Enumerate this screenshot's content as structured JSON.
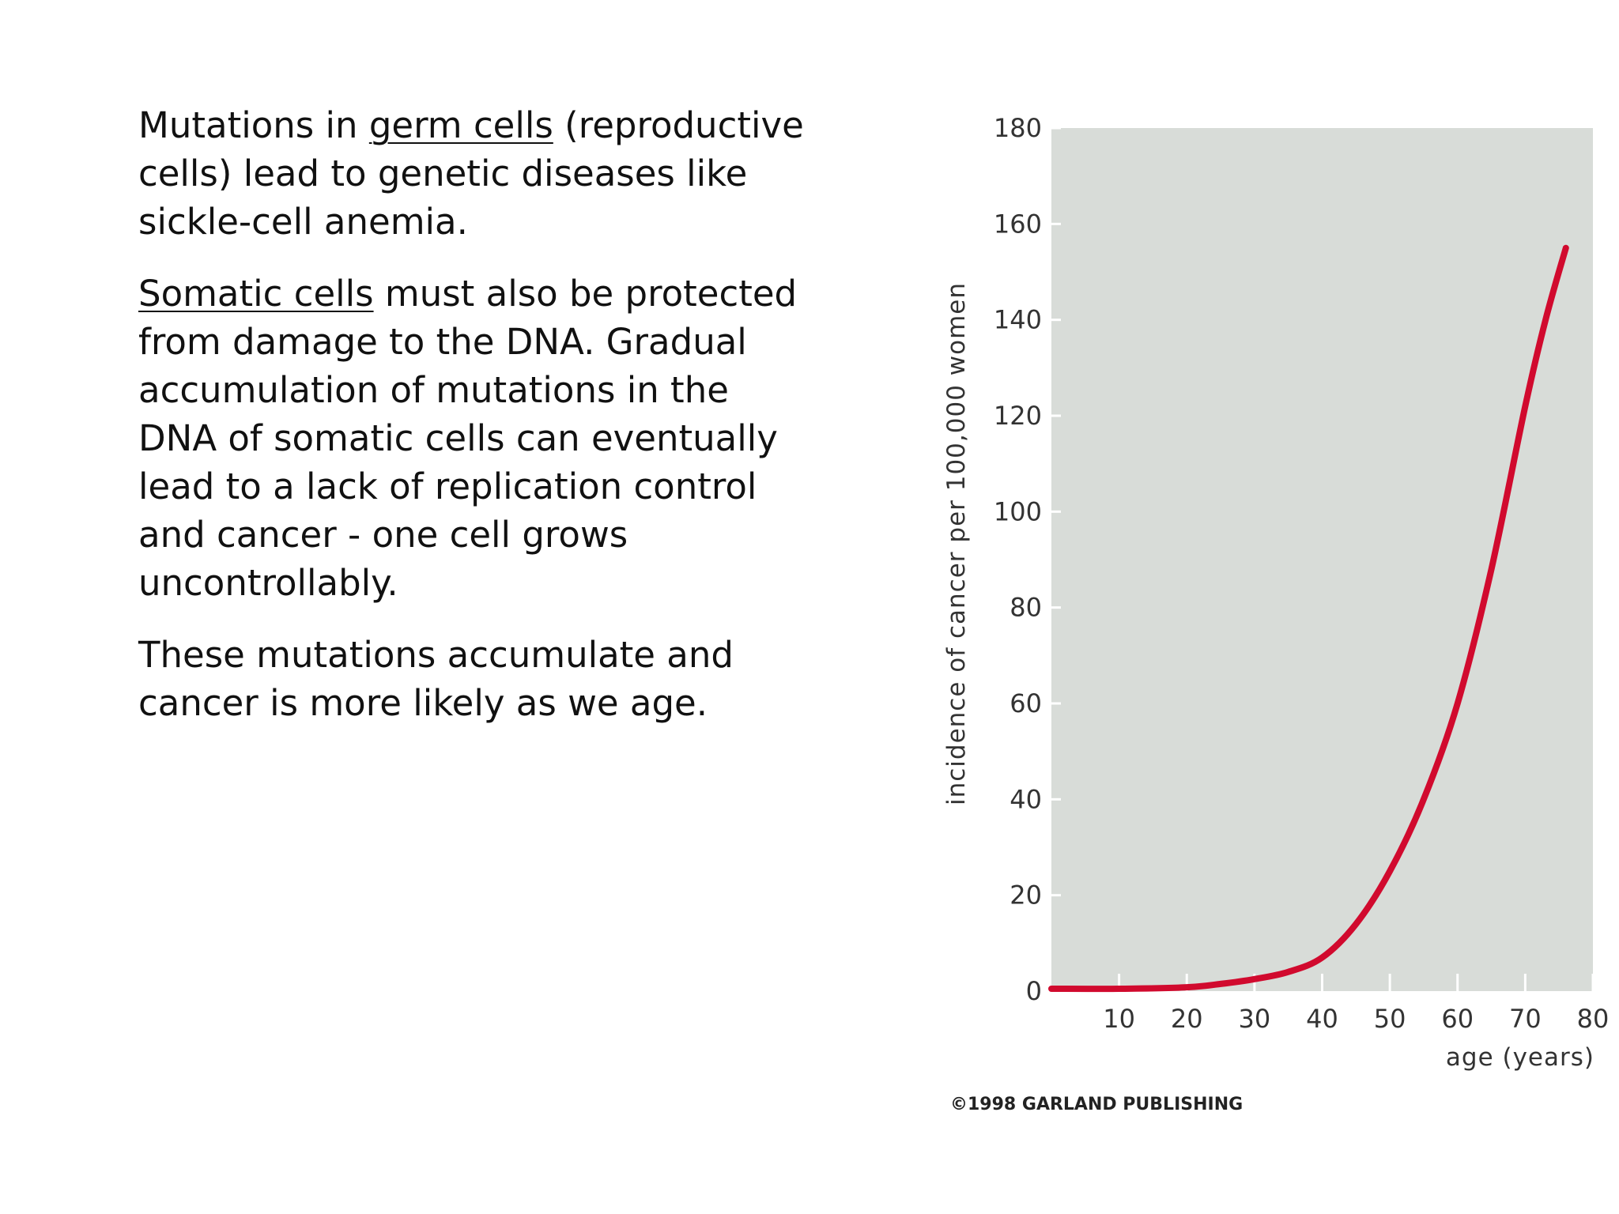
{
  "slide": {
    "paragraph1": {
      "before": "Mutations in ",
      "link": "germ cells",
      "after": " (reproductive cells) lead to genetic diseases like sickle-cell anemia."
    },
    "paragraph2": {
      "link": "Somatic cells",
      "after": " must also be protected from damage to the DNA.  Gradual accumulation of mutations in the DNA of somatic cells can eventually lead to a lack of replication control and cancer - one cell grows uncontrollably."
    },
    "paragraph3": "These mutations accumulate and cancer is more likely as we age."
  },
  "chart_data": {
    "type": "line",
    "xlabel": "age (years)",
    "ylabel": "incidence of cancer per 100,000 women",
    "xlim": [
      0,
      80
    ],
    "ylim": [
      0,
      180
    ],
    "x_ticks": [
      10,
      20,
      30,
      40,
      50,
      60,
      70,
      80
    ],
    "y_ticks": [
      0,
      20,
      40,
      60,
      80,
      100,
      120,
      140,
      160,
      180
    ],
    "grid": false,
    "background_color": "#d8dcd8",
    "series": [
      {
        "color": "#d10a2e",
        "x": [
          0,
          10,
          20,
          25,
          30,
          35,
          40,
          45,
          50,
          55,
          60,
          65,
          70,
          73,
          76
        ],
        "y": [
          0.5,
          0.5,
          0.8,
          1.5,
          2.5,
          4,
          7,
          14,
          25,
          40,
          60,
          88,
          122,
          140,
          155
        ]
      }
    ],
    "credit": "©1998 GARLAND PUBLISHING"
  }
}
